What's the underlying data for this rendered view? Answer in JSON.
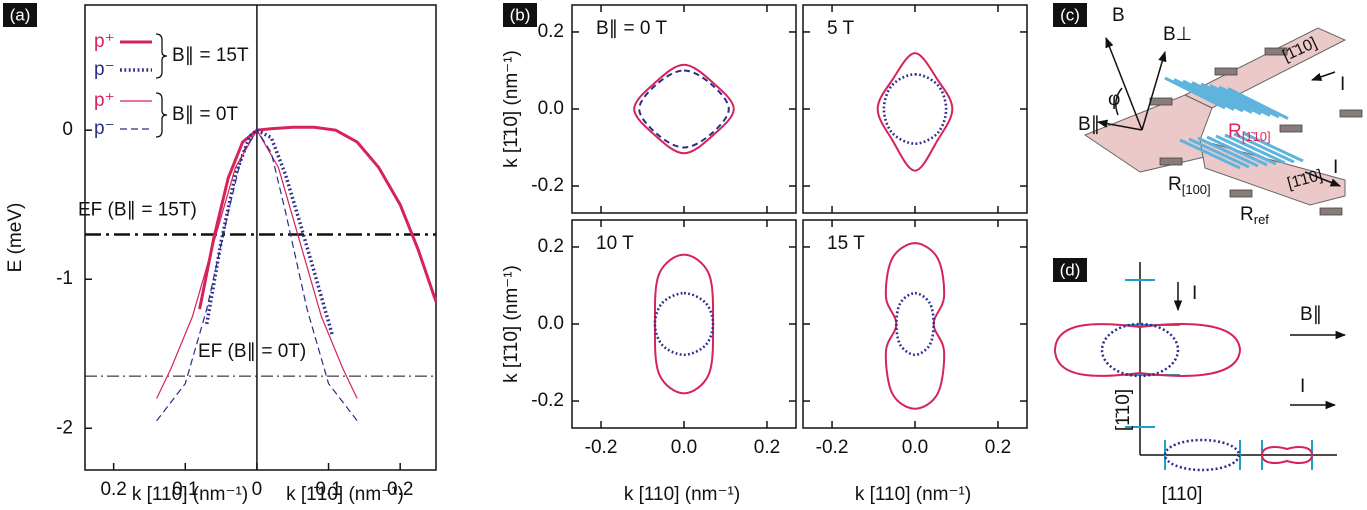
{
  "chart_data": [
    {
      "type": "line",
      "panel_label": "(a)",
      "xlim": [
        -0.24,
        0.25
      ],
      "ylim": [
        -2.28,
        0.84
      ],
      "xticks": [
        {
          "value": -0.2,
          "label": "0.2"
        },
        {
          "value": -0.1,
          "label": "0.1"
        },
        0,
        0.1,
        0.2
      ],
      "yticks": [
        0,
        -1,
        -2
      ],
      "ylabel": "E (meV)",
      "xlabel": [
        "k [110] (nm⁻¹)",
        "k [1̄10] (nm⁻¹)"
      ],
      "legend_groups": [
        "B∥ = 15T",
        "B∥ = 0T"
      ],
      "series": [
        {
          "name": "p⁺",
          "group": 0,
          "color": "#d6235a",
          "style": "solid",
          "width": 3,
          "x": [
            -0.08,
            -0.06,
            -0.04,
            -0.02,
            0,
            0.02,
            0.05,
            0.08,
            0.11,
            0.14,
            0.17,
            0.2,
            0.225,
            0.25
          ],
          "values": [
            -1.2,
            -0.72,
            -0.32,
            -0.08,
            0,
            0.01,
            0.02,
            0.02,
            0,
            -0.08,
            -0.25,
            -0.5,
            -0.8,
            -1.15
          ]
        },
        {
          "name": "p⁻",
          "group": 0,
          "color": "#2c2c8c",
          "style": "dotted",
          "width": 3.5,
          "x": [
            -0.07,
            -0.05,
            -0.03,
            -0.01,
            0,
            0.02,
            0.04,
            0.06,
            0.08,
            0.105
          ],
          "values": [
            -1.3,
            -0.75,
            -0.3,
            -0.04,
            0,
            -0.05,
            -0.3,
            -0.62,
            -0.95,
            -1.37
          ]
        },
        {
          "name": "p⁺",
          "group": 1,
          "color": "#d6235a",
          "style": "solid",
          "width": 1.2,
          "x": [
            -0.14,
            -0.12,
            -0.09,
            -0.06,
            -0.03,
            0,
            0.03,
            0.06,
            0.09,
            0.12,
            0.14
          ],
          "values": [
            -1.8,
            -1.6,
            -1.25,
            -0.75,
            -0.25,
            0,
            -0.25,
            -0.75,
            -1.25,
            -1.6,
            -1.8
          ]
        },
        {
          "name": "p⁻",
          "group": 1,
          "color": "#2c2c8c",
          "style": "dashed",
          "width": 1.2,
          "x": [
            -0.14,
            -0.1,
            -0.07,
            -0.04,
            -0.02,
            0,
            0.02,
            0.04,
            0.07,
            0.1,
            0.14
          ],
          "values": [
            -1.95,
            -1.7,
            -1.2,
            -0.55,
            -0.15,
            0,
            -0.15,
            -0.55,
            -1.2,
            -1.7,
            -1.95
          ]
        }
      ],
      "hlines": [
        {
          "value": -0.7,
          "label": "EF (B∥ = 15T)",
          "width": 2.5
        },
        {
          "value": -1.65,
          "label": "EF (B∥ = 0T)",
          "width": 1
        }
      ]
    },
    {
      "type": "closed-curve",
      "panel_label": "(b)",
      "xlim": [
        -0.27,
        0.27
      ],
      "ylim": [
        -0.27,
        0.27
      ],
      "xticks": [
        -0.2,
        {
          "value": 0,
          "label": "0.0"
        },
        0.2
      ],
      "yticks": [
        -0.2,
        {
          "value": 0,
          "label": "0.0"
        },
        0.2
      ],
      "xlabel": "k [110] (nm⁻¹)",
      "ylabel": "k [1̄10] (nm⁻¹)",
      "subplots": [
        {
          "title": "B∥ = 0 T",
          "series": [
            {
              "color": "#d6235a",
              "style": "solid",
              "x": [
                0,
                0.07,
                0.12,
                0.07,
                0,
                -0.07,
                -0.12,
                -0.07
              ],
              "y": [
                0.115,
                0.068,
                0,
                -0.068,
                -0.115,
                -0.068,
                0,
                0.068
              ]
            },
            {
              "color": "#2c2c8c",
              "style": "dashed",
              "x": [
                0,
                0.065,
                0.108,
                0.065,
                0,
                -0.065,
                -0.108,
                -0.065
              ],
              "y": [
                0.1,
                0.065,
                0,
                -0.065,
                -0.1,
                -0.065,
                0,
                0.065
              ]
            }
          ]
        },
        {
          "title": "5 T",
          "series": [
            {
              "color": "#d6235a",
              "style": "solid",
              "x": [
                0,
                0.055,
                0.09,
                0.055,
                0,
                -0.055,
                -0.09,
                -0.055
              ],
              "y": [
                0.145,
                0.075,
                0,
                -0.08,
                -0.16,
                -0.08,
                0,
                0.075
              ]
            },
            {
              "color": "#2c2c8c",
              "style": "dotted",
              "x": [
                0,
                0.055,
                0.075,
                0.055,
                0,
                -0.055,
                -0.075,
                -0.055
              ],
              "y": [
                0.09,
                0.062,
                0,
                -0.062,
                -0.09,
                -0.062,
                0,
                0.062
              ]
            }
          ]
        },
        {
          "title": "10 T",
          "series": [
            {
              "color": "#d6235a",
              "style": "solid",
              "x": [
                0,
                0.06,
                0.07,
                0.06,
                0,
                -0.06,
                -0.07,
                -0.06
              ],
              "y": [
                0.18,
                0.13,
                0,
                -0.13,
                -0.18,
                -0.13,
                0,
                0.13
              ]
            },
            {
              "color": "#2c2c8c",
              "style": "dotted",
              "x": [
                0,
                0.052,
                0.07,
                0.052,
                0,
                -0.052,
                -0.07,
                -0.052
              ],
              "y": [
                0.08,
                0.055,
                0,
                -0.055,
                -0.08,
                -0.055,
                0,
                0.055
              ]
            }
          ]
        },
        {
          "title": "15 T",
          "series": [
            {
              "color": "#d6235a",
              "style": "solid",
              "x": [
                0,
                0.055,
                0.07,
                0.045,
                0.07,
                0.055,
                0,
                -0.055,
                -0.07,
                -0.045,
                -0.07,
                -0.055
              ],
              "y": [
                0.21,
                0.17,
                0.07,
                0,
                -0.07,
                -0.18,
                -0.22,
                -0.18,
                -0.07,
                0,
                0.07,
                0.17
              ]
            },
            {
              "color": "#2c2c8c",
              "style": "dotted",
              "x": [
                0,
                0.035,
                0.045,
                0.035,
                0,
                -0.035,
                -0.045,
                -0.035
              ],
              "y": [
                0.08,
                0.055,
                0,
                -0.055,
                -0.08,
                -0.055,
                0,
                0.055
              ]
            }
          ]
        }
      ]
    }
  ],
  "diagrams": {
    "c": {
      "panel_label": "(c)",
      "labels": [
        "B",
        "B⊥",
        "φ",
        "B∥",
        "I",
        "I",
        "[1̄10]",
        "[1̄10]"
      ],
      "r_labels": [
        {
          "main": "R",
          "sub": "[1̄10]"
        },
        {
          "main": "R",
          "sub": "[100]"
        },
        {
          "main": "R",
          "sub": "ref"
        }
      ]
    },
    "d": {
      "panel_label": "(d)",
      "labels": [
        "I",
        "B∥",
        "I",
        "[1̄10]",
        "[110]"
      ]
    }
  }
}
